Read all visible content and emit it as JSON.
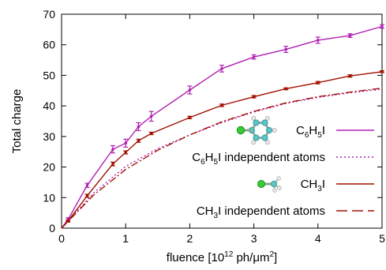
{
  "chart_data": {
    "type": "line",
    "xlabel": "fluence [10^12 ph/μm^2]",
    "ylabel": "Total charge",
    "xlim": [
      0,
      5
    ],
    "ylim": [
      0,
      70
    ],
    "x_ticks": [
      "0",
      "1",
      "2",
      "3",
      "4",
      "5"
    ],
    "y_ticks": [
      "0",
      "10",
      "20",
      "30",
      "40",
      "50",
      "60",
      "70"
    ],
    "grid": false,
    "legend_position": "right",
    "series": [
      {
        "name": "C6H5I",
        "color": "#b020b0",
        "style": "solid-with-errorbars",
        "x": [
          0,
          0.1,
          0.4,
          0.8,
          1.0,
          1.2,
          1.4,
          2.0,
          2.5,
          3.0,
          3.5,
          4.0,
          4.5,
          5.0
        ],
        "y": [
          0,
          2.8,
          14.0,
          25.8,
          27.8,
          33.2,
          36.6,
          45.2,
          52.2,
          56.0,
          58.5,
          61.5,
          63.0,
          66.0
        ],
        "err": [
          0,
          0.6,
          0.7,
          1.2,
          1.3,
          1.3,
          1.6,
          1.3,
          1.1,
          0.7,
          1.0,
          1.0,
          0.6,
          0.6
        ]
      },
      {
        "name": "C6H5I independent atoms",
        "color": "#b020b0",
        "style": "dotted",
        "x": [
          0,
          0.5,
          1,
          1.5,
          2,
          2.5,
          3,
          3.5,
          4,
          4.5,
          5
        ],
        "y": [
          0,
          11.5,
          20.2,
          26.0,
          30.5,
          34.5,
          38.0,
          40.8,
          42.8,
          44.3,
          45.5
        ]
      },
      {
        "name": "CH3I",
        "color": "#a01000",
        "style": "solid-with-errorbars",
        "x": [
          0,
          0.1,
          0.4,
          0.8,
          1.0,
          1.2,
          1.4,
          2.0,
          2.5,
          3.0,
          3.5,
          4.0,
          4.5,
          5.0
        ],
        "y": [
          0,
          2.3,
          10.6,
          21.0,
          24.8,
          28.6,
          31.0,
          36.2,
          40.2,
          43.0,
          45.6,
          47.6,
          49.8,
          51.2
        ],
        "err": [
          0,
          0.3,
          0.5,
          0.6,
          0.5,
          0.5,
          0.4,
          0.4,
          0.4,
          0.4,
          0.3,
          0.4,
          0.4,
          0.3
        ]
      },
      {
        "name": "CH3I independent atoms",
        "color": "#a01000",
        "style": "dash-dot",
        "x": [
          0,
          0.5,
          1,
          1.5,
          2,
          2.5,
          3,
          3.5,
          4,
          4.5,
          5
        ],
        "y": [
          0,
          10.8,
          19.2,
          25.5,
          30.5,
          34.8,
          38.2,
          41.0,
          43.0,
          44.5,
          45.8
        ]
      }
    ],
    "legend": [
      {
        "label_html": [
          "C",
          "6",
          "H",
          "5",
          "I"
        ],
        "label_subs": [
          1,
          3
        ],
        "series_index": 0,
        "icon": "iodobenzene-molecule-icon"
      },
      {
        "label_html": [
          "C",
          "6",
          "H",
          "5",
          "I independent atoms"
        ],
        "label_subs": [
          1,
          3
        ],
        "series_index": 1,
        "icon": ""
      },
      {
        "label_html": [
          "CH",
          "3",
          "I"
        ],
        "label_subs": [
          1
        ],
        "series_index": 2,
        "icon": "iodomethane-molecule-icon"
      },
      {
        "label_html": [
          "CH",
          "3",
          "I independent atoms"
        ],
        "label_subs": [
          1
        ],
        "series_index": 3,
        "icon": ""
      }
    ]
  }
}
